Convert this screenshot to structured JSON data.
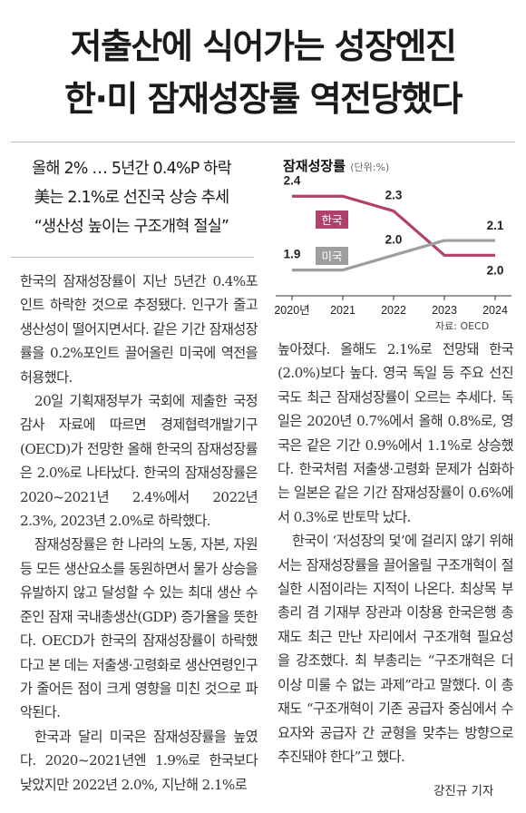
{
  "headline": {
    "line1": "저출산에 식어가는 성장엔진",
    "line2": "한·미 잠재성장률 역전당했다"
  },
  "subheads": [
    "올해 2% … 5년간 0.4%P 하락",
    "美는 2.1%로 선진국 상승 추세",
    "“생산성 높이는 구조개혁 절실”"
  ],
  "article_left": [
    "한국의 잠재성장률이 지난 5년간 0.4%포인트 하락한 것으로 추정됐다. 인구가 줄고 생산성이 떨어지면서다. 같은 기간 잠재성장률을 0.2%포인트 끌어올린 미국에 역전을 허용했다.",
    "20일 기획재정부가 국회에 제출한 국정감사 자료에 따르면 경제협력개발기구(OECD)가 전망한 올해 한국의 잠재성장률은 2.0%로 나타났다. 한국의 잠재성장률은 2020~2021년 2.4%에서 2022년 2.3%, 2023년 2.0%로 하락했다.",
    "잠재성장률은 한 나라의 노동, 자본, 자원 등 모든 생산요소를 동원하면서 물가 상승을 유발하지 않고 달성할 수 있는 최대 생산 수준인 잠재 국내총생산(GDP) 증가율을 뜻한다. OECD가 한국의 잠재성장률이 하락했다고 본 데는 저출생·고령화로 생산연령인구가 줄어든 점이 크게 영향을 미친 것으로 파악된다.",
    "한국과 달리 미국은 잠재성장률을 높였다. 2020~2021년엔 1.9%로 한국보다 낮았지만 2022년 2.0%, 지난해 2.1%로"
  ],
  "article_right": [
    "높아졌다. 올해도 2.1%로 전망돼 한국(2.0%)보다 높다. 영국 독일 등 주요 선진국도 최근 잠재성장률이 오르는 추세다. 독일은 2020년 0.7%에서 올해 0.8%로, 영국은 같은 기간 0.9%에서 1.1%로 상승했다. 한국처럼 저출생·고령화 문제가 심화하는 일본은 같은 기간 잠재성장률이 0.6%에서 0.3%로 반토막 났다.",
    "한국이 ‘저성장의 덫’에 걸리지 않기 위해서는 잠재성장률을 끌어올릴 구조개혁이 절실한 시점이라는 지적이 나온다. 최상목 부총리 겸 기재부 장관과 이창용 한국은행 총재도 최근 만난 자리에서 구조개혁 필요성을 강조했다. 최 부총리는 “구조개혁은 더 이상 미룰 수 없는 과제”라고 말했다. 이 총재도 “구조개혁이 기존 공급자 중심에서 수요자와 공급자 간 균형을 맞추는 방향으로 추진돼야 한다”고 했다."
  ],
  "byline": "강진규 기자",
  "chart": {
    "title": "잠재성장률",
    "unit": "(단위:%)",
    "source": "자료: OECD"
  },
  "chart_data": {
    "type": "line",
    "x": [
      "2020년",
      "2021",
      "2022",
      "2023",
      "2024"
    ],
    "series": [
      {
        "name": "한국",
        "values": [
          2.4,
          2.4,
          2.3,
          2.0,
          2.0
        ],
        "color": "#b0416a",
        "labels": [
          "2.4",
          null,
          "2.3",
          null,
          "2.0"
        ]
      },
      {
        "name": "미국",
        "values": [
          1.9,
          1.9,
          2.0,
          2.1,
          2.1
        ],
        "color": "#9e9e9e",
        "labels": [
          "1.9",
          null,
          "2.0",
          null,
          "2.1"
        ]
      }
    ],
    "ylim": [
      1.75,
      2.5
    ],
    "grid": false
  }
}
